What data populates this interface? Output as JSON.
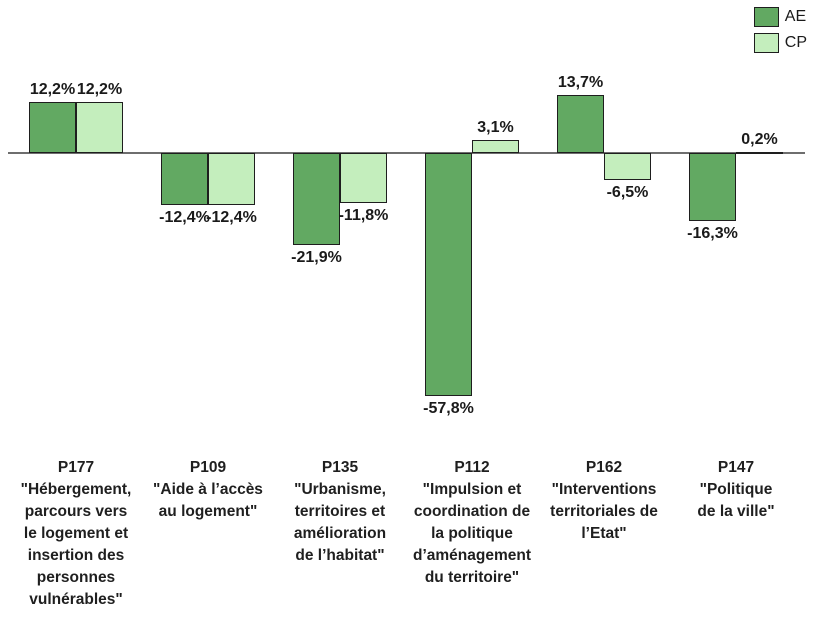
{
  "chart_data": {
    "type": "bar",
    "title": "",
    "xlabel": "",
    "ylabel": "",
    "grid": false,
    "legend_position": "top-right",
    "ylim": [
      -65,
      20
    ],
    "value_label_format": "percent with comma decimal",
    "axis_color": "#6e6e6e",
    "bar_border_color": "#1e1e1e",
    "categories": [
      "P177\n\"Hébergement,\nparcours vers\nle logement et\ninsertion des\npersonnes\nvulnérables\"",
      "P109\n\"Aide à l’accès\nau logement\"",
      "P135\n\"Urbanisme,\nterritoires et\namélioration\nde l’habitat\"",
      "P112\n\"Impulsion et\ncoordination de\nla politique\nd’aménagement\ndu territoire\"",
      "P162\n\"Interventions\nterritoriales de\nl’Etat\"",
      "P147\n\"Politique\nde la ville\""
    ],
    "series": [
      {
        "name": "AE",
        "color": "#62a962",
        "values": [
          12.2,
          -12.4,
          -21.9,
          -57.8,
          13.7,
          -16.3
        ],
        "labels": [
          "12,2%",
          "-12,4%",
          "-21,9%",
          "-57,8%",
          "13,7%",
          "-16,3%"
        ]
      },
      {
        "name": "CP",
        "color": "#c4eebd",
        "values": [
          12.2,
          -12.4,
          -11.8,
          3.1,
          -6.5,
          0.2
        ],
        "labels": [
          "12,2%",
          "-12,4%",
          "-11,8%",
          "3,1%",
          "-6,5%",
          "0,2%"
        ]
      }
    ]
  }
}
